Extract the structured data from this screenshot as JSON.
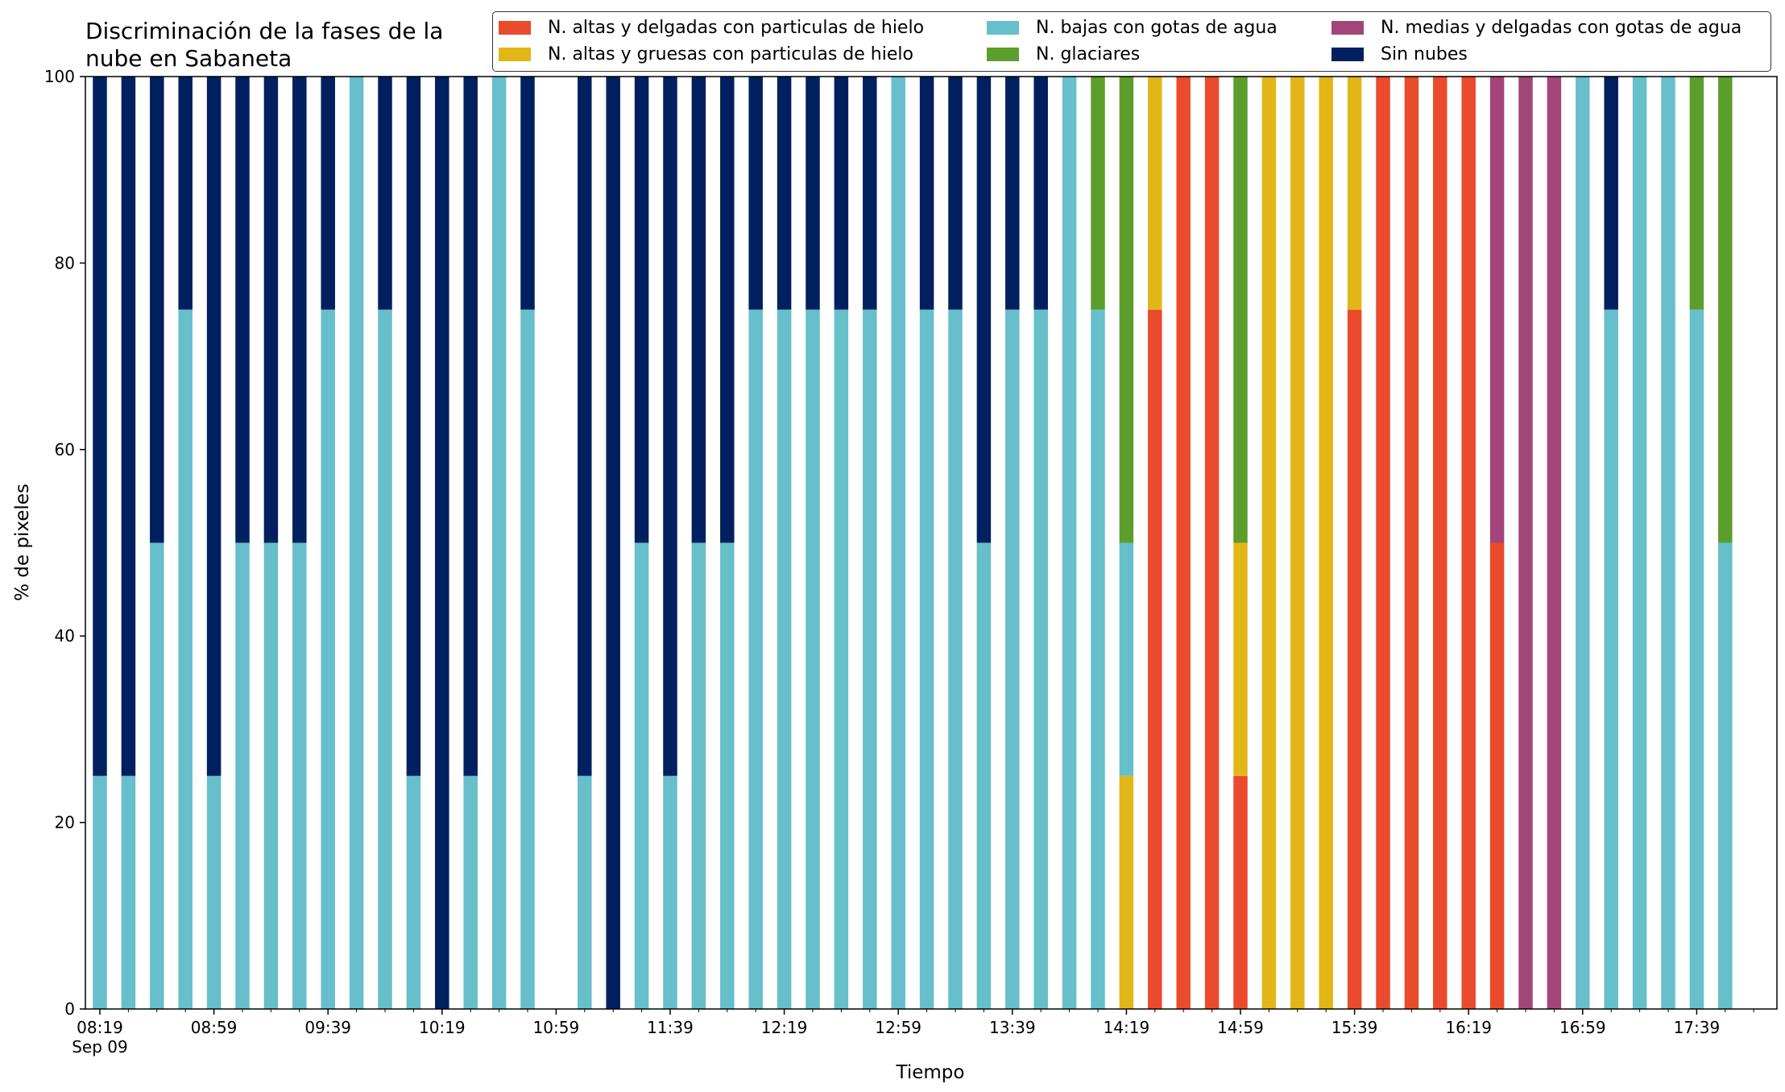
{
  "colors": {
    "red": "#E94B2C",
    "yellow": "#E3B618",
    "cyan": "#66BFCB",
    "green": "#5C9E2C",
    "purple": "#A44579",
    "navy": "#002060"
  },
  "chart_data": {
    "type": "bar",
    "stacked": true,
    "title": "Discriminación de la fases de la\nnube en Sabaneta",
    "xlabel": "Tiempo",
    "ylabel": "% de pixeles",
    "ylim": [
      0,
      100
    ],
    "yticks": [
      0,
      20,
      40,
      60,
      80,
      100
    ],
    "xtick_labels": [
      "08:19\nSep 09",
      "08:59",
      "09:39",
      "10:19",
      "10:59",
      "11:39",
      "12:19",
      "12:59",
      "13:39",
      "14:19",
      "14:59",
      "15:39",
      "16:19",
      "16:59",
      "17:39"
    ],
    "grid": false,
    "legend_position": "top-right",
    "categories": [
      "08:19",
      "08:29",
      "08:39",
      "08:49",
      "08:59",
      "09:09",
      "09:19",
      "09:29",
      "09:39",
      "09:49",
      "09:59",
      "10:09",
      "10:19",
      "10:29",
      "10:39",
      "10:49",
      "10:59",
      "11:09",
      "11:19",
      "11:29",
      "11:39",
      "11:49",
      "11:59",
      "12:09",
      "12:19",
      "12:29",
      "12:39",
      "12:49",
      "12:59",
      "13:09",
      "13:19",
      "13:29",
      "13:39",
      "13:49",
      "13:59",
      "14:09",
      "14:19",
      "14:29",
      "14:39",
      "14:49",
      "14:59",
      "15:09",
      "15:19",
      "15:29",
      "15:39",
      "15:49",
      "15:59",
      "16:09",
      "16:19",
      "16:29",
      "16:39",
      "16:49",
      "16:59",
      "17:09",
      "17:19",
      "17:29",
      "17:39",
      "17:49"
    ],
    "series": [
      {
        "name": "N. altas y delgadas con particulas de hielo",
        "color_key": "red",
        "values": [
          0,
          0,
          0,
          0,
          0,
          0,
          0,
          0,
          0,
          0,
          0,
          0,
          0,
          0,
          0,
          0,
          null,
          0,
          0,
          0,
          0,
          0,
          0,
          0,
          0,
          0,
          0,
          0,
          0,
          0,
          0,
          0,
          0,
          0,
          0,
          0,
          0,
          75,
          100,
          100,
          25,
          0,
          0,
          0,
          75,
          100,
          100,
          100,
          100,
          50,
          0,
          0,
          0,
          0,
          0,
          0,
          0,
          0
        ]
      },
      {
        "name": "N. altas y gruesas con particulas de hielo",
        "color_key": "yellow",
        "values": [
          0,
          0,
          0,
          0,
          0,
          0,
          0,
          0,
          0,
          0,
          0,
          0,
          0,
          0,
          0,
          0,
          null,
          0,
          0,
          0,
          0,
          0,
          0,
          0,
          0,
          0,
          0,
          0,
          0,
          0,
          0,
          0,
          0,
          0,
          0,
          0,
          25,
          25,
          0,
          0,
          25,
          100,
          100,
          100,
          25,
          0,
          0,
          0,
          0,
          0,
          0,
          0,
          0,
          0,
          0,
          0,
          0,
          0
        ]
      },
      {
        "name": "N. bajas con gotas de agua",
        "color_key": "cyan",
        "values": [
          25,
          25,
          50,
          75,
          25,
          50,
          50,
          50,
          75,
          100,
          75,
          25,
          0,
          25,
          100,
          75,
          null,
          25,
          0,
          50,
          25,
          50,
          50,
          75,
          75,
          75,
          75,
          75,
          100,
          75,
          75,
          50,
          75,
          75,
          100,
          75,
          25,
          0,
          0,
          0,
          0,
          0,
          0,
          0,
          0,
          0,
          0,
          0,
          0,
          0,
          0,
          0,
          100,
          75,
          100,
          100,
          75,
          50
        ]
      },
      {
        "name": "N. medias y delgadas con gotas de agua",
        "color_key": "purple",
        "values": [
          0,
          0,
          0,
          0,
          0,
          0,
          0,
          0,
          0,
          0,
          0,
          0,
          0,
          0,
          0,
          0,
          null,
          0,
          0,
          0,
          0,
          0,
          0,
          0,
          0,
          0,
          0,
          0,
          0,
          0,
          0,
          0,
          0,
          0,
          0,
          0,
          0,
          0,
          0,
          0,
          0,
          0,
          0,
          0,
          0,
          0,
          0,
          0,
          0,
          50,
          100,
          100,
          0,
          0,
          0,
          0,
          0,
          0
        ]
      },
      {
        "name": "N. glaciares",
        "color_key": "green",
        "values": [
          0,
          0,
          0,
          0,
          0,
          0,
          0,
          0,
          0,
          0,
          0,
          0,
          0,
          0,
          0,
          0,
          null,
          0,
          0,
          0,
          0,
          0,
          0,
          0,
          0,
          0,
          0,
          0,
          0,
          0,
          0,
          0,
          0,
          0,
          0,
          25,
          50,
          0,
          0,
          0,
          50,
          0,
          0,
          0,
          0,
          0,
          0,
          0,
          0,
          0,
          0,
          0,
          0,
          0,
          0,
          0,
          25,
          50
        ]
      },
      {
        "name": "Sin nubes",
        "color_key": "navy",
        "values": [
          75,
          75,
          50,
          25,
          75,
          50,
          50,
          50,
          25,
          0,
          25,
          75,
          100,
          75,
          0,
          25,
          null,
          75,
          100,
          50,
          75,
          50,
          50,
          25,
          25,
          25,
          25,
          25,
          0,
          25,
          25,
          50,
          25,
          25,
          0,
          0,
          0,
          0,
          0,
          0,
          0,
          0,
          0,
          0,
          0,
          0,
          0,
          0,
          0,
          0,
          0,
          0,
          0,
          25,
          0,
          0,
          0,
          0
        ]
      }
    ]
  }
}
